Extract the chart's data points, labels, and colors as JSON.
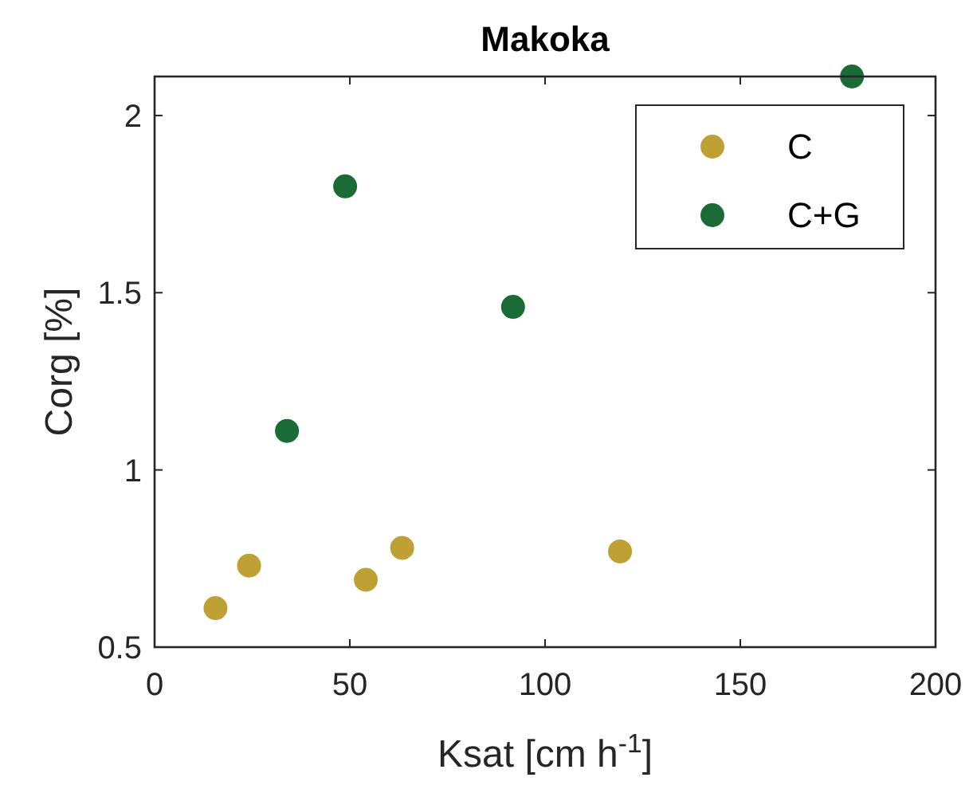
{
  "chart_data": {
    "type": "scatter",
    "title": "Makoka",
    "xlabel": "Ksat [cm h$^{-1}$]",
    "ylabel": "Corg [%]",
    "xlim": [
      0,
      200
    ],
    "xticks": [
      0,
      50,
      100,
      150,
      200
    ],
    "ylim": [
      0.5,
      2.11
    ],
    "yticks": [
      0.5,
      1,
      1.5,
      2
    ],
    "grid": false,
    "legend": "top right",
    "marker": "circle",
    "series": [
      {
        "name": "C",
        "color": "#bfa035",
        "x": [
          15.6,
          24.2,
          54.1,
          63.4,
          119.2
        ],
        "values": [
          0.61,
          0.73,
          0.69,
          0.78,
          0.77
        ]
      },
      {
        "name": "C+G",
        "color": "#1a6b35",
        "x": [
          33.9,
          48.8,
          91.8,
          178.6
        ],
        "values": [
          1.11,
          1.8,
          1.46,
          2.11
        ]
      }
    ]
  }
}
